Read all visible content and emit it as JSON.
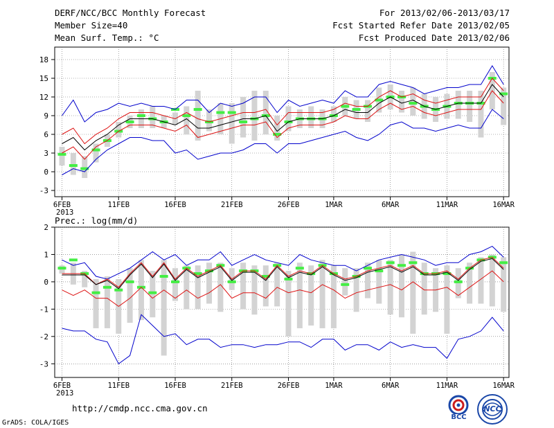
{
  "header": {
    "title": "DERF/NCC/BCC Monthly Forecast",
    "member_size": "Member Size=40",
    "variable": "Mean Surf. Temp.: °C",
    "forecast_period": "For 2013/02/06-2013/03/17",
    "started_refer": "Fcst Started Refer Date 2013/02/05",
    "produced": "Fcst Produced Date 2013/02/06"
  },
  "footer": {
    "url": "http://cmdp.ncc.cma.gov.cn",
    "credit": "GrADS: COLA/IGES",
    "logo1_text": "BCC",
    "logo2_text": "NCC"
  },
  "colors": {
    "box": "#d3d3d3",
    "median": "#44ee44",
    "mean": "#000000",
    "ci": "#dd1111",
    "extreme": "#0000cc",
    "axis": "#000000"
  },
  "x_ticks": [
    "6FEB",
    "11FEB",
    "16FEB",
    "21FEB",
    "26FEB",
    "1MAR",
    "6MAR",
    "11MAR",
    "16MAR"
  ],
  "x_tick_days": [
    0,
    5,
    10,
    15,
    20,
    24,
    29,
    34,
    39
  ],
  "x_year": "2013",
  "chart_data": [
    {
      "type": "line",
      "title": "Mean Surf. Temp.: °C",
      "ylabel": "°C",
      "ylim": [
        -4,
        20
      ],
      "yticks": [
        -3,
        0,
        3,
        6,
        9,
        12,
        15,
        18
      ],
      "yticklabels": [
        "-3",
        "0",
        "3",
        "6",
        "9",
        "12",
        "15",
        "18"
      ],
      "days": 40,
      "series": [
        {
          "name": "max",
          "values": [
            9,
            11.5,
            8,
            9.5,
            10,
            11,
            10.5,
            11,
            10.5,
            10.5,
            10,
            11.5,
            11.5,
            9.5,
            11,
            10.5,
            11,
            12,
            12,
            9.5,
            11.5,
            10.5,
            11,
            11.5,
            11,
            13,
            12,
            12,
            14,
            14.5,
            14,
            13.5,
            12.5,
            13,
            13.5,
            13.5,
            14,
            14,
            17,
            14
          ]
        },
        {
          "name": "ci_upper",
          "values": [
            6,
            7,
            4.5,
            6,
            7,
            8.5,
            9.5,
            9.5,
            9.5,
            9,
            8.5,
            9.5,
            8.5,
            8,
            8.5,
            9,
            9.5,
            9.5,
            10,
            7.5,
            9.5,
            9.5,
            9.5,
            9.5,
            10,
            11,
            10.5,
            10.5,
            12,
            13,
            12,
            12.5,
            11.5,
            11,
            11.5,
            12,
            12,
            12,
            15,
            13
          ]
        },
        {
          "name": "mean",
          "values": [
            4.5,
            5.5,
            3.5,
            5,
            6,
            7.5,
            8.5,
            8.5,
            8.5,
            8,
            7.5,
            8.5,
            7,
            7,
            7.5,
            8,
            8.5,
            8.5,
            9,
            6.5,
            8,
            8.5,
            8.5,
            8.5,
            9,
            10,
            9.5,
            9.5,
            11,
            12,
            11,
            11.5,
            10.5,
            10,
            10.5,
            11,
            11,
            11,
            14,
            12
          ]
        },
        {
          "name": "ci_lower",
          "values": [
            3,
            4,
            2,
            4,
            5,
            6.5,
            7.5,
            7.5,
            7.5,
            7,
            6.5,
            7.5,
            5.5,
            6,
            6.5,
            7,
            7.5,
            7.5,
            8,
            5.5,
            7,
            7.5,
            7.5,
            7.5,
            8,
            9,
            8.5,
            8.5,
            10,
            11,
            10,
            10.5,
            9.5,
            9,
            9.5,
            10,
            10,
            10,
            13,
            11
          ]
        },
        {
          "name": "min",
          "values": [
            -0.5,
            0.5,
            0,
            2,
            3.5,
            4.5,
            5.5,
            5.5,
            5,
            5,
            3,
            3.5,
            2,
            2.5,
            3,
            3,
            3.5,
            4.5,
            4.5,
            3,
            4.5,
            4.5,
            5,
            5.5,
            6,
            6.5,
            5.5,
            5,
            6,
            7.5,
            8,
            7,
            7,
            6.5,
            7,
            7.5,
            7,
            7,
            10,
            8.5
          ]
        },
        {
          "name": "median",
          "values": [
            2.8,
            1,
            0.5,
            3.5,
            5,
            6.5,
            8,
            9,
            8.5,
            8,
            10,
            9,
            10,
            8,
            9.5,
            9.5,
            8,
            8.5,
            9,
            6,
            8,
            8.5,
            8.5,
            8.5,
            9,
            10.5,
            10,
            10.5,
            11.5,
            12,
            12,
            11,
            10.5,
            10,
            10.5,
            11,
            11,
            11,
            15,
            12.5
          ]
        },
        {
          "name": "box_top",
          "values": [
            4,
            3,
            2.5,
            4.5,
            6,
            8,
            9,
            10,
            10.5,
            9,
            9.5,
            10.5,
            13,
            10,
            11,
            11,
            12,
            13,
            13,
            9,
            10.5,
            10,
            10.5,
            10,
            10.5,
            12,
            11.5,
            11.5,
            13.5,
            14,
            13,
            13.5,
            12.5,
            12,
            12.5,
            13,
            13,
            13,
            16,
            13.5
          ]
        },
        {
          "name": "box_bottom",
          "values": [
            1,
            -0.5,
            -1,
            1.5,
            4,
            5.5,
            7,
            7,
            7,
            7,
            7.5,
            6,
            5,
            6.5,
            6,
            4.5,
            5.5,
            5,
            6,
            5,
            6.5,
            7,
            7,
            7,
            8,
            9,
            8.5,
            8,
            9.5,
            10,
            9.5,
            9,
            8.5,
            8,
            8.5,
            8.5,
            8,
            5.5,
            10,
            7.5
          ]
        }
      ]
    },
    {
      "type": "line",
      "title": "Prec.: log(mm/d)",
      "ylabel": "log(mm/d)",
      "ylim": [
        -3.5,
        2
      ],
      "yticks": [
        -3,
        -2,
        -1,
        0,
        1,
        2
      ],
      "yticklabels": [
        "-3",
        "-2",
        "-1",
        "0",
        "1",
        "2"
      ],
      "days": 40,
      "series": [
        {
          "name": "max",
          "values": [
            0.8,
            0.6,
            0.7,
            0.2,
            0.1,
            0.3,
            0.5,
            0.8,
            1.1,
            0.8,
            1.0,
            0.6,
            0.8,
            0.8,
            1.1,
            0.6,
            0.8,
            1.0,
            0.8,
            0.7,
            0.6,
            1.0,
            0.8,
            0.7,
            0.6,
            0.6,
            0.4,
            0.6,
            0.8,
            0.9,
            1.0,
            0.9,
            0.8,
            0.6,
            0.7,
            0.7,
            1.0,
            1.1,
            1.3,
            0.9
          ]
        },
        {
          "name": "ci_upper",
          "values": [
            0.3,
            0.3,
            0.3,
            -0.1,
            0.1,
            -0.2,
            0.3,
            0.7,
            0.2,
            0.7,
            0.1,
            0.5,
            0.2,
            0.4,
            0.6,
            0.1,
            0.4,
            0.4,
            0.1,
            0.6,
            0.2,
            0.4,
            0.3,
            0.6,
            0.3,
            0.1,
            0.2,
            0.4,
            0.5,
            0.6,
            0.4,
            0.6,
            0.3,
            0.3,
            0.4,
            0.1,
            0.5,
            0.8,
            0.9,
            0.5
          ]
        },
        {
          "name": "mean",
          "values": [
            0.25,
            0.25,
            0.25,
            -0.1,
            0.05,
            -0.25,
            0.25,
            0.65,
            0.15,
            0.65,
            0.05,
            0.45,
            0.15,
            0.35,
            0.55,
            0.05,
            0.35,
            0.35,
            0.05,
            0.55,
            0.15,
            0.35,
            0.25,
            0.55,
            0.25,
            0.05,
            0.15,
            0.35,
            0.45,
            0.55,
            0.35,
            0.55,
            0.25,
            0.25,
            0.35,
            0.05,
            0.45,
            0.75,
            0.85,
            0.45
          ]
        },
        {
          "name": "ci_lower",
          "values": [
            -0.3,
            -0.5,
            -0.3,
            -0.6,
            -0.6,
            -0.9,
            -0.6,
            -0.2,
            -0.6,
            -0.3,
            -0.6,
            -0.3,
            -0.6,
            -0.4,
            -0.1,
            -0.6,
            -0.4,
            -0.4,
            -0.6,
            -0.2,
            -0.4,
            -0.3,
            -0.4,
            -0.1,
            -0.3,
            -0.6,
            -0.4,
            -0.3,
            -0.2,
            -0.1,
            -0.3,
            0.0,
            -0.3,
            -0.3,
            -0.2,
            -0.5,
            -0.2,
            0.1,
            0.4,
            0.0
          ]
        },
        {
          "name": "min",
          "values": [
            -1.7,
            -1.8,
            -1.8,
            -2.1,
            -2.2,
            -3.0,
            -2.7,
            -1.2,
            -1.6,
            -2.0,
            -1.9,
            -2.3,
            -2.1,
            -2.1,
            -2.4,
            -2.3,
            -2.3,
            -2.4,
            -2.3,
            -2.3,
            -2.2,
            -2.2,
            -2.4,
            -2.1,
            -2.1,
            -2.5,
            -2.3,
            -2.3,
            -2.5,
            -2.2,
            -2.4,
            -2.3,
            -2.4,
            -2.4,
            -2.8,
            -2.1,
            -2.0,
            -1.8,
            -1.3,
            -1.8
          ]
        },
        {
          "name": "median",
          "values": [
            0.5,
            0.8,
            0.3,
            -0.4,
            -0.2,
            -0.3,
            0.0,
            -0.2,
            -0.4,
            0.2,
            0.0,
            0.5,
            0.3,
            0.4,
            0.6,
            0.0,
            0.4,
            0.4,
            0.2,
            0.6,
            0.1,
            0.5,
            0.3,
            0.6,
            0.3,
            -0.1,
            0.2,
            0.5,
            0.4,
            0.7,
            0.6,
            0.7,
            0.3,
            0.3,
            0.3,
            0.0,
            0.5,
            0.8,
            0.9,
            0.7
          ]
        },
        {
          "name": "box_top",
          "values": [
            0.6,
            0.7,
            0.4,
            0.1,
            0.2,
            0.1,
            0.5,
            0.8,
            0.4,
            0.8,
            0.5,
            0.6,
            0.6,
            0.7,
            0.7,
            0.5,
            0.7,
            0.6,
            0.6,
            0.7,
            0.4,
            0.7,
            0.6,
            0.8,
            0.6,
            0.5,
            0.5,
            0.7,
            0.8,
            0.8,
            1.0,
            1.1,
            0.7,
            0.5,
            0.6,
            0.5,
            0.7,
            0.9,
            1.0,
            0.9
          ]
        },
        {
          "name": "box_bottom",
          "values": [
            0.3,
            -0.1,
            -0.2,
            -1.7,
            -1.7,
            -1.9,
            -1.5,
            -1.4,
            -1.3,
            -2.7,
            -0.7,
            -1.0,
            -1.0,
            -0.8,
            -1.1,
            -0.3,
            -1.0,
            -1.2,
            -0.9,
            -0.9,
            -2.0,
            -1.7,
            -1.6,
            -1.7,
            -1.7,
            -0.5,
            -1.1,
            -0.6,
            -0.8,
            -1.2,
            -1.3,
            -1.9,
            -1.2,
            -1.1,
            -1.9,
            -0.6,
            -0.8,
            -0.8,
            -0.9,
            -1.1
          ]
        }
      ]
    }
  ]
}
